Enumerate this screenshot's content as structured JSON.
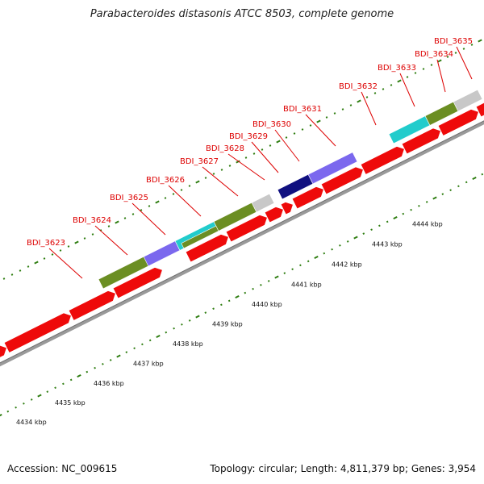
{
  "title": "Parabacteroides distasonis ATCC 8503, complete genome",
  "footer": {
    "accession": "Accession: NC_009615",
    "stats": "Topology: circular; Length: 4,811,379 bp; Genes: 3,954"
  },
  "colors": {
    "gene_label": "#dd0000",
    "tick": "#2e7d10",
    "backbone": "#9a9a9a",
    "forward_gene": "#ee0a0a",
    "olive": "#6b8e23",
    "purple": "#7b68ee",
    "cyan": "#22cccc",
    "gray": "#c8c8c8",
    "navy": "#101080"
  },
  "scale_labels": [
    "4434 kbp",
    "4435 kbp",
    "4436 kbp",
    "4437 kbp",
    "4438 kbp",
    "4439 kbp",
    "4440 kbp",
    "4441 kbp",
    "4442 kbp",
    "4443 kbp",
    "4444 kbp"
  ],
  "gene_labels": [
    "BDI_3623",
    "BDI_3624",
    "BDI_3625",
    "BDI_3626",
    "BDI_3627",
    "BDI_3628",
    "BDI_3629",
    "BDI_3630",
    "BDI_3631",
    "BDI_3632",
    "BDI_3633",
    "BDI_3634",
    "BDI_3635"
  ]
}
